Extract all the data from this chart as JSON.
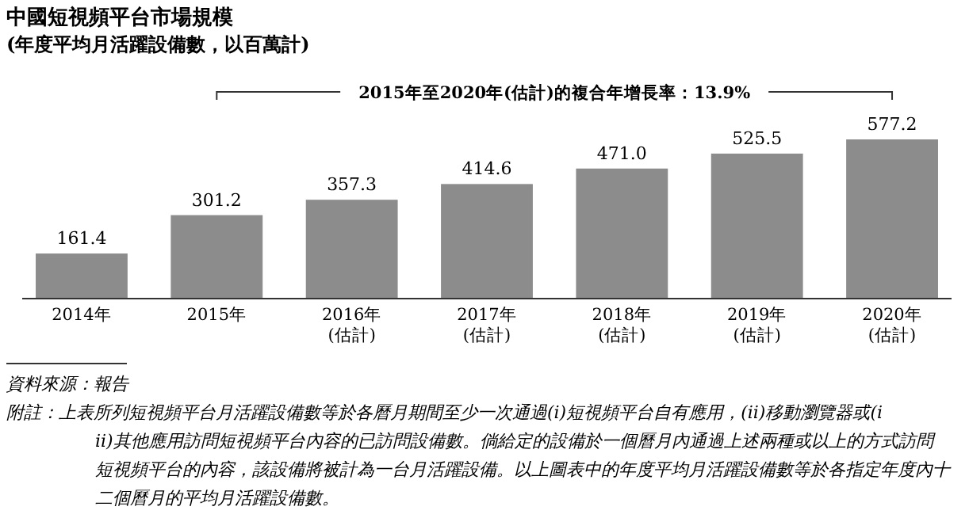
{
  "chart_data": {
    "type": "bar",
    "title": "中國短視頻平台市場規模",
    "subtitle": "(年度平均月活躍設備數，以百萬計)",
    "categories": [
      "2014年",
      "2015年",
      "2016年\n(估計)",
      "2017年\n(估計)",
      "2018年\n(估計)",
      "2019年\n(估計)",
      "2020年\n(估計)"
    ],
    "values": [
      161.4,
      301.2,
      357.3,
      414.6,
      471.0,
      525.5,
      577.2
    ],
    "color": "#8c8c8c",
    "value_labels": [
      "161.4",
      "301.2",
      "357.3",
      "414.6",
      "471.0",
      "525.5",
      "577.2"
    ],
    "annotations": [
      "2015年至2020年(估計)的複合年增長率：13.9%",
      "資料來源：報告",
      "附註：上表所列短視頻平台月活躍設備數等於各曆月期間至少一次通過(i)短視頻平台自有應用，(ii)移動瀏覽器或(iii)其他應用訪問短視頻平台內容的已訪問設備數。倘給定的設備於一個曆月內通過上述兩種或以上的方式訪問短視頻平台的內容，該設備將被計為一台月活躍設備。以上圖表中的年度平均月活躍設備數等於各指定年度內十二個曆月的平均月活躍設備數。"
    ]
  }
}
